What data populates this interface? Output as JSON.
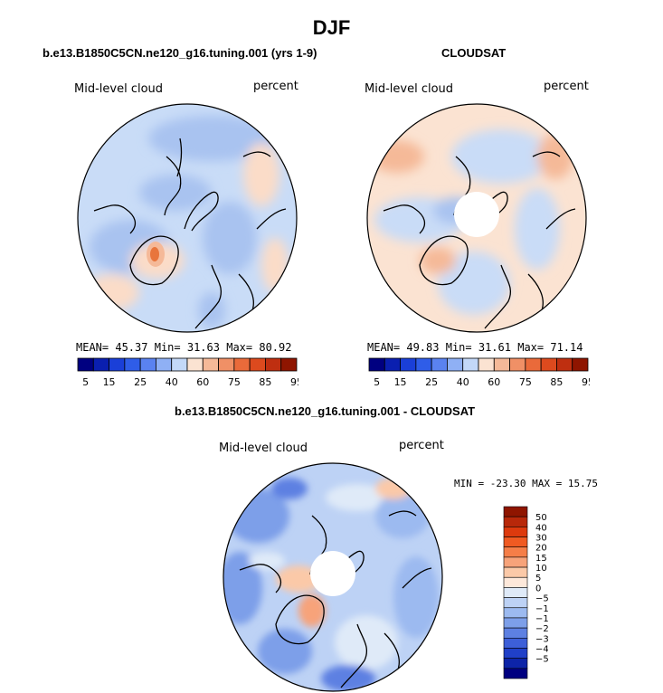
{
  "title": "DJF",
  "panels": [
    {
      "id": "model",
      "title": "b.e13.B1850C5CN.ne120_g16.tuning.001 (yrs 1-9)",
      "variable_label": "Mid-level cloud",
      "units_label": "percent",
      "stats": {
        "mean_label": "MEAN=",
        "mean": "45.37",
        "min_label": "Min=",
        "min": "31.63",
        "max_label": "Max=",
        "max": "80.92"
      },
      "has_missing_pole": false
    },
    {
      "id": "obs",
      "title": "CLOUDSAT",
      "variable_label": "Mid-level cloud",
      "units_label": "percent",
      "stats": {
        "mean_label": "MEAN=",
        "mean": "49.83",
        "min_label": "Min=",
        "min": "31.61",
        "max_label": "Max=",
        "max": "71.14"
      },
      "has_missing_pole": true
    },
    {
      "id": "diff",
      "title": "b.e13.B1850C5CN.ne120_g16.tuning.001 - CLOUDSAT",
      "variable_label": "Mid-level cloud",
      "units_label": "percent",
      "range_text": "MIN = -23.30 MAX =  15.75",
      "has_missing_pole": true
    }
  ],
  "colorbar_top": {
    "colors": [
      "#000080",
      "#0a1fb0",
      "#1a3fd8",
      "#2f5de8",
      "#5a82f0",
      "#8fb0f5",
      "#c3d8f8",
      "#fbe3d2",
      "#f5b998",
      "#f09066",
      "#ea6a3a",
      "#dd4a1e",
      "#bf2f10",
      "#8f1500"
    ],
    "labels": [
      "5",
      "15",
      "25",
      "40",
      "60",
      "75",
      "85",
      "95"
    ]
  },
  "colorbar_diff": {
    "colors": [
      "#8f1500",
      "#b8280a",
      "#dd3a0e",
      "#f05a22",
      "#f57e48",
      "#f7a37a",
      "#fbc9a8",
      "#fde8da",
      "#dfeaf8",
      "#bdd2f5",
      "#9cbaf0",
      "#7d9fe9",
      "#5d80e2",
      "#3d5fd8",
      "#2040c8",
      "#0d24a8",
      "#000080"
    ],
    "labels": [
      "50",
      "40",
      "30",
      "20",
      "15",
      "10",
      "5",
      "0",
      "−5",
      "−10",
      "−15",
      "−20",
      "−30",
      "−40",
      "−50"
    ]
  }
}
